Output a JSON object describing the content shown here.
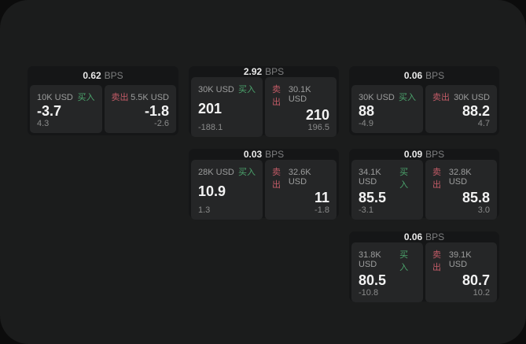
{
  "labels": {
    "bps_unit": "BPS",
    "buy": "买入",
    "sell": "卖出"
  },
  "colors": {
    "outer_background": "#0c0c0c",
    "panel_background": "#1b1c1c",
    "card_background": "#151617",
    "tile_background": "#252627",
    "buy_accent": "#4ba36c",
    "sell_accent": "#c25b67"
  },
  "cards": [
    {
      "bps": "0.62",
      "buy": {
        "amount": "10K USD",
        "price": "-3.7",
        "change": "4.3"
      },
      "sell": {
        "amount": "5.5K USD",
        "price": "-1.8",
        "change": "-2.6"
      }
    },
    {
      "bps": "2.92",
      "buy": {
        "amount": "30K USD",
        "price": "201",
        "change": "-188.1"
      },
      "sell": {
        "amount": "30.1K USD",
        "price": "210",
        "change": "196.5"
      }
    },
    {
      "bps": "0.06",
      "buy": {
        "amount": "30K USD",
        "price": "88",
        "change": "-4.9"
      },
      "sell": {
        "amount": "30K USD",
        "price": "88.2",
        "change": "4.7"
      }
    },
    {
      "bps": "0.03",
      "buy": {
        "amount": "28K USD",
        "price": "10.9",
        "change": "1.3"
      },
      "sell": {
        "amount": "32.6K USD",
        "price": "11",
        "change": "-1.8"
      }
    },
    {
      "bps": "0.09",
      "buy": {
        "amount": "34.1K USD",
        "price": "85.5",
        "change": "-3.1"
      },
      "sell": {
        "amount": "32.8K USD",
        "price": "85.8",
        "change": "3.0"
      }
    },
    {
      "bps": "0.06",
      "buy": {
        "amount": "31.8K USD",
        "price": "80.5",
        "change": "-10.8"
      },
      "sell": {
        "amount": "39.1K USD",
        "price": "80.7",
        "change": "10.2"
      }
    }
  ]
}
